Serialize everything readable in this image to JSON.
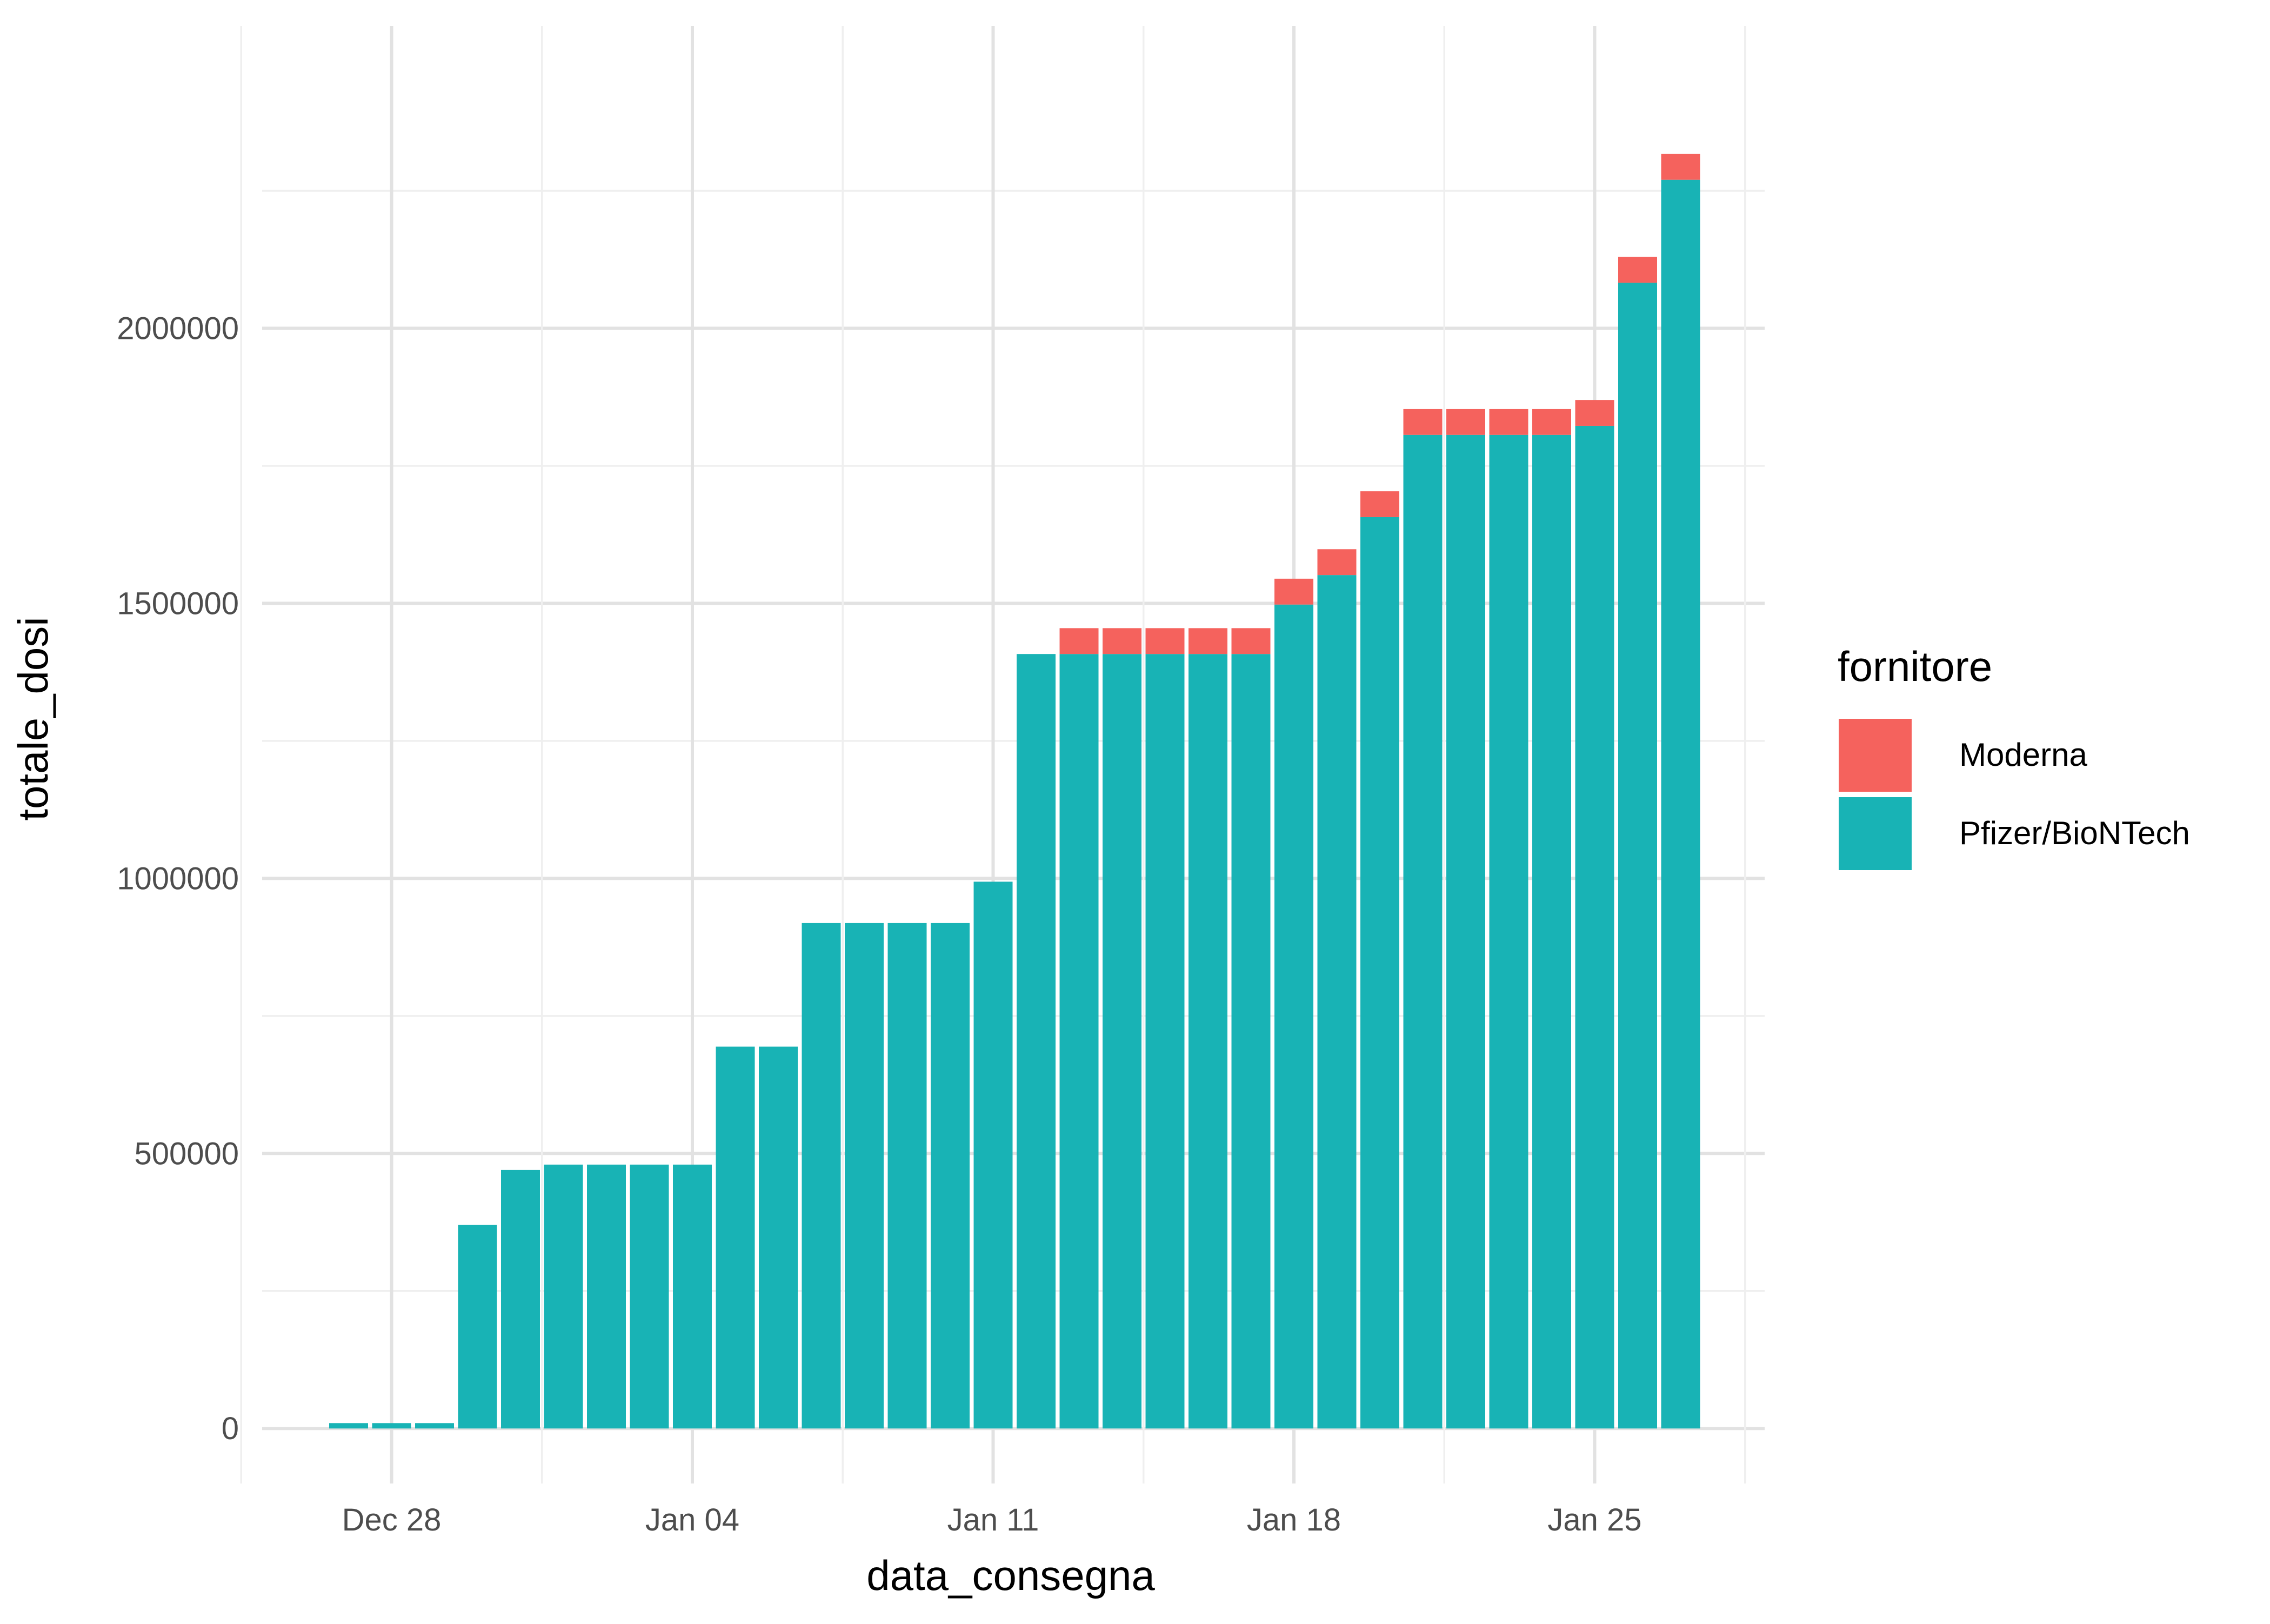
{
  "chart_data": {
    "type": "bar",
    "stacked": true,
    "xlabel": "data_consegna",
    "ylabel": "totale_dosi",
    "ylim": [
      -100000,
      2420000
    ],
    "y_ticks": [
      0,
      500000,
      1000000,
      1500000,
      2000000
    ],
    "y_tick_labels": [
      "0",
      "500000",
      "1000000",
      "1500000",
      "2000000"
    ],
    "x_tick_labels": [
      "Dec 28",
      "Jan 04",
      "Jan 11",
      "Jan 18",
      "Jan 25"
    ],
    "legend_title": "fornitore",
    "legend_position": "right",
    "grid": true,
    "categories": [
      "2020-12-27",
      "2020-12-28",
      "2020-12-29",
      "2020-12-30",
      "2020-12-31",
      "2021-01-01",
      "2021-01-02",
      "2021-01-03",
      "2021-01-04",
      "2021-01-05",
      "2021-01-06",
      "2021-01-07",
      "2021-01-08",
      "2021-01-09",
      "2021-01-10",
      "2021-01-11",
      "2021-01-12",
      "2021-01-13",
      "2021-01-14",
      "2021-01-15",
      "2021-01-16",
      "2021-01-17",
      "2021-01-18",
      "2021-01-19",
      "2021-01-20",
      "2021-01-21",
      "2021-01-22",
      "2021-01-23",
      "2021-01-24",
      "2021-01-25",
      "2021-01-26",
      "2021-01-27"
    ],
    "series": [
      {
        "name": "Pfizer/BioNTech",
        "color": "#18B3B5",
        "values": [
          9750,
          9750,
          9750,
          369900,
          469950,
          479700,
          479700,
          479700,
          479700,
          694200,
          694200,
          918900,
          918900,
          918900,
          918900,
          994000,
          1407900,
          1407900,
          1407900,
          1407900,
          1407900,
          1407900,
          1497800,
          1551400,
          1656700,
          1806200,
          1806200,
          1806200,
          1806200,
          1822700,
          2082900,
          2270000
        ]
      },
      {
        "name": "Moderna",
        "color": "#F5625D",
        "values": [
          0,
          0,
          0,
          0,
          0,
          0,
          0,
          0,
          0,
          0,
          0,
          0,
          0,
          0,
          0,
          0,
          0,
          47000,
          47000,
          47000,
          47000,
          47000,
          47000,
          47000,
          47000,
          47000,
          47000,
          47000,
          47000,
          47000,
          47000,
          47000
        ]
      }
    ],
    "legend_order": [
      "Moderna",
      "Pfizer/BioNTech"
    ]
  }
}
